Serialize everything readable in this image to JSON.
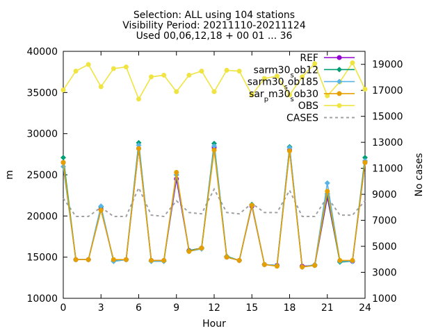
{
  "chart_data": {
    "type": "line",
    "title_lines": [
      "Selection: ALL using   104 stations",
      "Visibility   Period: 20211110-20211124",
      "Used 00,06,12,18 + 00 01 ... 36"
    ],
    "xlabel": "Hour",
    "ylabel": "m",
    "y2label": "No cases",
    "xlim": [
      0,
      24
    ],
    "ylim": [
      10000,
      40000
    ],
    "y2lim": [
      1000,
      20000
    ],
    "xticks": [
      0,
      3,
      6,
      9,
      12,
      15,
      18,
      21,
      24
    ],
    "yticks": [
      10000,
      15000,
      20000,
      25000,
      30000,
      35000,
      40000
    ],
    "y2ticks": [
      1000,
      3000,
      5000,
      7000,
      9000,
      11000,
      13000,
      15000,
      17000,
      19000
    ],
    "x": [
      0,
      1,
      2,
      3,
      4,
      5,
      6,
      7,
      8,
      9,
      10,
      11,
      12,
      13,
      14,
      15,
      16,
      17,
      18,
      19,
      20,
      21,
      22,
      23,
      24
    ],
    "legend_position": "top-right",
    "series": [
      {
        "name": "REF",
        "legend": [
          "REF"
        ],
        "color": "#9400d3",
        "marker": "circle",
        "axis": "y",
        "values": [
          26500,
          14700,
          14700,
          20800,
          14600,
          14700,
          28200,
          14600,
          14600,
          24500,
          15800,
          16100,
          28300,
          15000,
          14600,
          21200,
          14100,
          14000,
          28000,
          13900,
          14000,
          22300,
          14500,
          14500,
          26500
        ]
      },
      {
        "name": "sar_m30_sob12",
        "legend": [
          "sar",
          "m30",
          "s",
          "ob12"
        ],
        "color": "#009e73",
        "marker": "diamond",
        "axis": "y",
        "values": [
          27100,
          14700,
          14700,
          21100,
          14500,
          14700,
          28900,
          14500,
          14500,
          25000,
          15800,
          16100,
          28800,
          15100,
          14600,
          21400,
          14100,
          14000,
          28400,
          13800,
          14000,
          22700,
          14400,
          14500,
          27100
        ]
      },
      {
        "name": "sar_m30_sob185",
        "legend": [
          "sar",
          "m30",
          "s",
          "ob185"
        ],
        "color": "#56b4e9",
        "marker": "diamond",
        "axis": "y",
        "values": [
          26000,
          14700,
          14700,
          21200,
          14500,
          14700,
          28600,
          14500,
          14500,
          25000,
          15700,
          16000,
          28500,
          15000,
          14600,
          21300,
          14100,
          14000,
          28300,
          13800,
          14100,
          24000,
          14500,
          14500,
          26700
        ]
      },
      {
        "name": "sar_pm30_sob30",
        "legend": [
          "sar",
          "p",
          "m30",
          "s",
          "ob30"
        ],
        "color": "#e69f00",
        "marker": "circle",
        "axis": "y",
        "values": [
          26500,
          14700,
          14700,
          20700,
          14700,
          14700,
          28200,
          14600,
          14600,
          25300,
          15700,
          16100,
          28000,
          15000,
          14600,
          21300,
          14100,
          13900,
          27900,
          13800,
          14000,
          23000,
          14600,
          14600,
          26500
        ]
      },
      {
        "name": "OBS",
        "legend": [
          "OBS"
        ],
        "color": "#f0e442",
        "marker": "circle",
        "axis": "y",
        "values": [
          35300,
          37600,
          38400,
          35700,
          37900,
          38100,
          34200,
          36900,
          37100,
          35100,
          37100,
          37600,
          35100,
          37700,
          37600,
          34700,
          36700,
          37000,
          34700,
          36900,
          38500,
          34600,
          36300,
          38600,
          35400
        ]
      },
      {
        "name": "CASES",
        "legend": [
          "CASES"
        ],
        "color": "#a0a0a0",
        "marker": "none",
        "dashed": true,
        "axis": "y2",
        "values": [
          8700,
          7300,
          7300,
          8000,
          7300,
          7300,
          9500,
          7400,
          7300,
          8500,
          7600,
          7500,
          9400,
          7600,
          7500,
          8300,
          7600,
          7600,
          9300,
          7300,
          7300,
          8800,
          7400,
          7400,
          8500
        ]
      }
    ]
  }
}
